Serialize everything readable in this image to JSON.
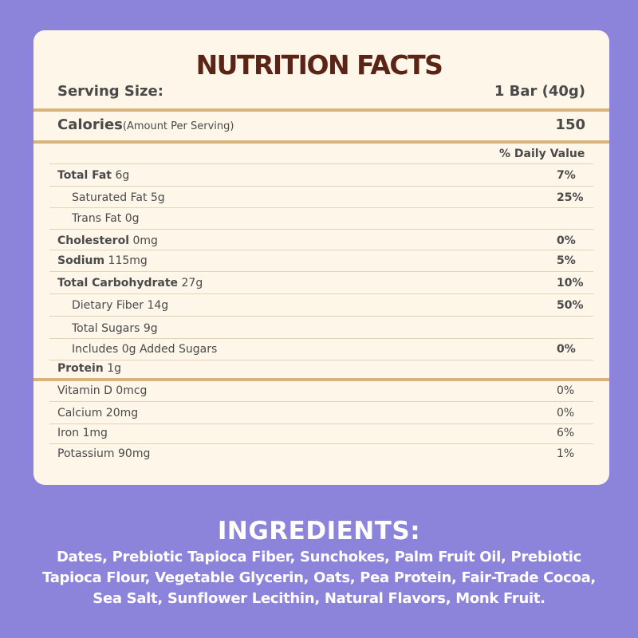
{
  "panel": {
    "title": "NUTRITION FACTS",
    "serving_label": "Serving Size:",
    "serving_value": "1 Bar (40g)",
    "calories_label": "Calories",
    "calories_sub": "(Amount Per Serving)",
    "calories_value": "150",
    "dv_header": "% Daily Value"
  },
  "nutrients": [
    {
      "name": "Total Fat",
      "amount": "6g",
      "dv": "7%"
    },
    {
      "name": "Saturated Fat 5g",
      "dv": "25%"
    },
    {
      "name": "Trans Fat 0g",
      "dv": ""
    },
    {
      "name": "Cholesterol",
      "amount": "0mg",
      "dv": "0%"
    },
    {
      "name": "Sodium",
      "amount": "115mg",
      "dv": "5%"
    },
    {
      "name": "Total Carbohydrate",
      "amount": "27g",
      "dv": "10%"
    },
    {
      "name": "Dietary Fiber 14g",
      "dv": "50%"
    },
    {
      "name": "Total Sugars 9g",
      "dv": ""
    },
    {
      "name": "Includes 0g Added Sugars",
      "dv": "0%"
    },
    {
      "name": "Protein",
      "amount": "1g",
      "dv": ""
    }
  ],
  "vitamins": [
    {
      "name": "Vitamin D 0mcg",
      "dv": "0%"
    },
    {
      "name": "Calcium 20mg",
      "dv": "0%"
    },
    {
      "name": "Iron 1mg",
      "dv": "6%"
    },
    {
      "name": "Potassium 90mg",
      "dv": "1%"
    }
  ],
  "ingredients": {
    "title": "INGREDIENTS:",
    "text": "Dates, Prebiotic Tapioca Fiber, Sunchokes, Palm Fruit Oil, Prebiotic Tapioca Flour, Vegetable Glycerin, Oats, Pea Protein, Fair-Trade Cocoa, Sea Salt, Sunflower Lecithin, Natural Flavors, Monk Fruit."
  },
  "colors": {
    "background": "#8c83db",
    "card": "#fdf6e9",
    "title": "#5a2416",
    "divider": "#d8b47d"
  }
}
